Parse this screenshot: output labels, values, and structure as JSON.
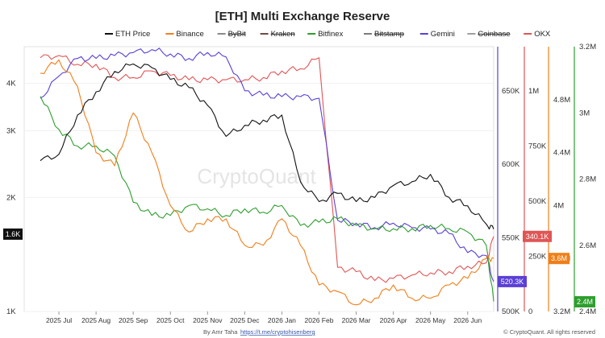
{
  "chart_data": {
    "type": "line",
    "title": "[ETH] Multi Exchange Reserve",
    "x_tick_labels": [
      "2025 Jul",
      "2025 Aug",
      "2025 Sep",
      "2025 Oct",
      "2025 Nov",
      "2025 Dec",
      "2026 Jan",
      "2026 Feb",
      "2026 Mar",
      "2026 Apr",
      "2026 May",
      "2026 Jun"
    ],
    "axes": {
      "price": {
        "scale": "log",
        "ticks": [
          "1K",
          "2K",
          "3K",
          "4K"
        ],
        "current_label": "1.6K",
        "color": "#111111"
      },
      "gemini": {
        "range": [
          500000,
          680000
        ],
        "ticks": [
          "500K",
          "550K",
          "600K",
          "650K"
        ],
        "current_label": "520.3K",
        "color": "#5b3fd6"
      },
      "okx": {
        "range": [
          0,
          1200000
        ],
        "ticks": [
          "0",
          "250K",
          "500K",
          "750K",
          "1M"
        ],
        "current_label": "340.1K",
        "color": "#e05555"
      },
      "binance": {
        "range": [
          3200000,
          5200000
        ],
        "ticks": [
          "3.2M",
          "3.6M",
          "4M",
          "4.4M",
          "4.8M"
        ],
        "current_label": "3.6M",
        "color": "#ef7f1a"
      },
      "bitfinex": {
        "range": [
          2400000,
          3200000
        ],
        "ticks": [
          "2.4M",
          "2.6M",
          "2.8M",
          "3M",
          "3.2M"
        ],
        "current_label": "2.4M",
        "color": "#2e9e2e"
      }
    },
    "series": [
      {
        "name": "ETH Price",
        "color": "#111111",
        "axis": "price",
        "visible": true
      },
      {
        "name": "Binance",
        "color": "#ef7f1a",
        "axis": "binance",
        "visible": true
      },
      {
        "name": "ByBit",
        "color": "#8a8a8a",
        "visible": false
      },
      {
        "name": "Kraken",
        "color": "#6d4c41",
        "visible": false
      },
      {
        "name": "Bitfinex",
        "color": "#2e9e2e",
        "axis": "bitfinex",
        "visible": true
      },
      {
        "name": "Bitstamp",
        "color": "#7b7b7b",
        "visible": false
      },
      {
        "name": "Gemini",
        "color": "#5b3fd6",
        "axis": "gemini",
        "visible": true
      },
      {
        "name": "Coinbase",
        "color": "#9e9e9e",
        "visible": false
      },
      {
        "name": "OKX",
        "color": "#e05555",
        "axis": "okx",
        "visible": true
      }
    ],
    "x_months": [
      0,
      0.5,
      1,
      1.5,
      2,
      2.5,
      3,
      3.5,
      4,
      4.5,
      5,
      5.5,
      6,
      6.5,
      7,
      7.5,
      8,
      8.5,
      9,
      9.5,
      10,
      10.5,
      11,
      11.5,
      12,
      12.2
    ],
    "values": {
      "ETH Price": [
        2500,
        2600,
        3300,
        3800,
        4300,
        4500,
        4400,
        4100,
        3900,
        3500,
        2900,
        3100,
        3200,
        3300,
        2200,
        1950,
        2050,
        1950,
        2000,
        2150,
        2200,
        2300,
        2000,
        1900,
        1700,
        1650
      ],
      "Binance": [
        5000,
        5100,
        4900,
        4400,
        4300,
        4700,
        4400,
        4000,
        3800,
        3900,
        3900,
        3700,
        3700,
        3900,
        3700,
        3400,
        3350,
        3250,
        3300,
        3400,
        3300,
        3300,
        3400,
        3450,
        3600,
        3600
      ],
      "Bitfinex": [
        3050,
        2950,
        2900,
        2900,
        2870,
        2730,
        2690,
        2690,
        2720,
        2710,
        2690,
        2710,
        2700,
        2720,
        2660,
        2670,
        2680,
        2660,
        2650,
        2650,
        2650,
        2660,
        2650,
        2640,
        2600,
        2430
      ],
      "Gemini": [
        645,
        660,
        672,
        672,
        674,
        676,
        678,
        675,
        672,
        676,
        673,
        650,
        647,
        646,
        646,
        645,
        562,
        560,
        557,
        560,
        557,
        556,
        553,
        540,
        538,
        520.3
      ],
      "OKX": [
        1150,
        1160,
        1120,
        1120,
        1060,
        1060,
        1090,
        1070,
        1050,
        1050,
        1050,
        1050,
        1060,
        1090,
        1100,
        1150,
        200,
        180,
        140,
        150,
        165,
        175,
        180,
        205,
        220,
        340.1
      ]
    }
  },
  "watermark": "CryptoQuant",
  "footer_left": "By Amr Taha",
  "footer_link": "https://t.me/cryptohisenberg",
  "footer_right": "© CryptoQuant. All rights reserved"
}
